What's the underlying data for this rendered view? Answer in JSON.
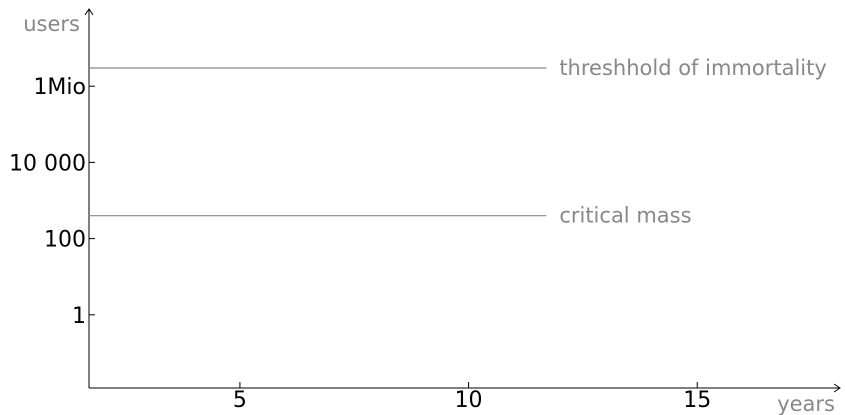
{
  "chart_data": {
    "type": "line",
    "title": "",
    "xlabel": "years",
    "ylabel": "users",
    "x_ticks": [
      {
        "value": 5,
        "label": "5"
      },
      {
        "value": 10,
        "label": "10"
      },
      {
        "value": 15,
        "label": "15"
      }
    ],
    "y_scale": "log",
    "y_ticks": [
      {
        "value": 1,
        "label": "1"
      },
      {
        "value": 100,
        "label": "100"
      },
      {
        "value": 10000,
        "label": "10 000"
      },
      {
        "value": 1000000,
        "label": "1Mio"
      }
    ],
    "xlim": [
      1.7,
      18.1
    ],
    "ylim": [
      0.012,
      100000000
    ],
    "reference_lines": [
      {
        "label": "threshhold of immortality",
        "y": 3000000,
        "x_start": 1.7,
        "x_end": 11.7
      },
      {
        "label": "critical mass",
        "y": 400,
        "x_start": 1.7,
        "x_end": 11.7
      }
    ],
    "series": [],
    "grid": false,
    "colors": {
      "axis": "#000000",
      "reference": "#888888"
    }
  }
}
